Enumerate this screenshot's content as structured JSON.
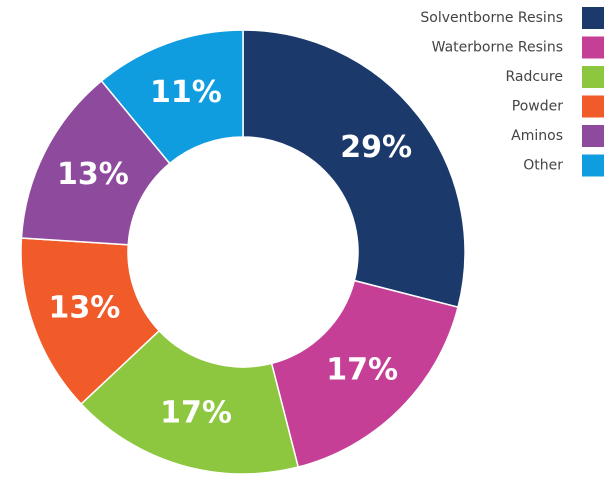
{
  "chart_data": {
    "type": "pie",
    "donut": true,
    "categories": [
      "Solventborne Resins",
      "Waterborne Resins",
      "Radcure",
      "Powder",
      "Aminos",
      "Other"
    ],
    "values": [
      29,
      17,
      17,
      13,
      13,
      11
    ],
    "value_labels": [
      "29%",
      "17%",
      "17%",
      "13%",
      "13%",
      "11%"
    ],
    "colors": [
      "#1b3a6b",
      "#c63f96",
      "#8dc63f",
      "#f15a29",
      "#8e4b9e",
      "#0f9ddf"
    ],
    "legend": "top-right"
  }
}
